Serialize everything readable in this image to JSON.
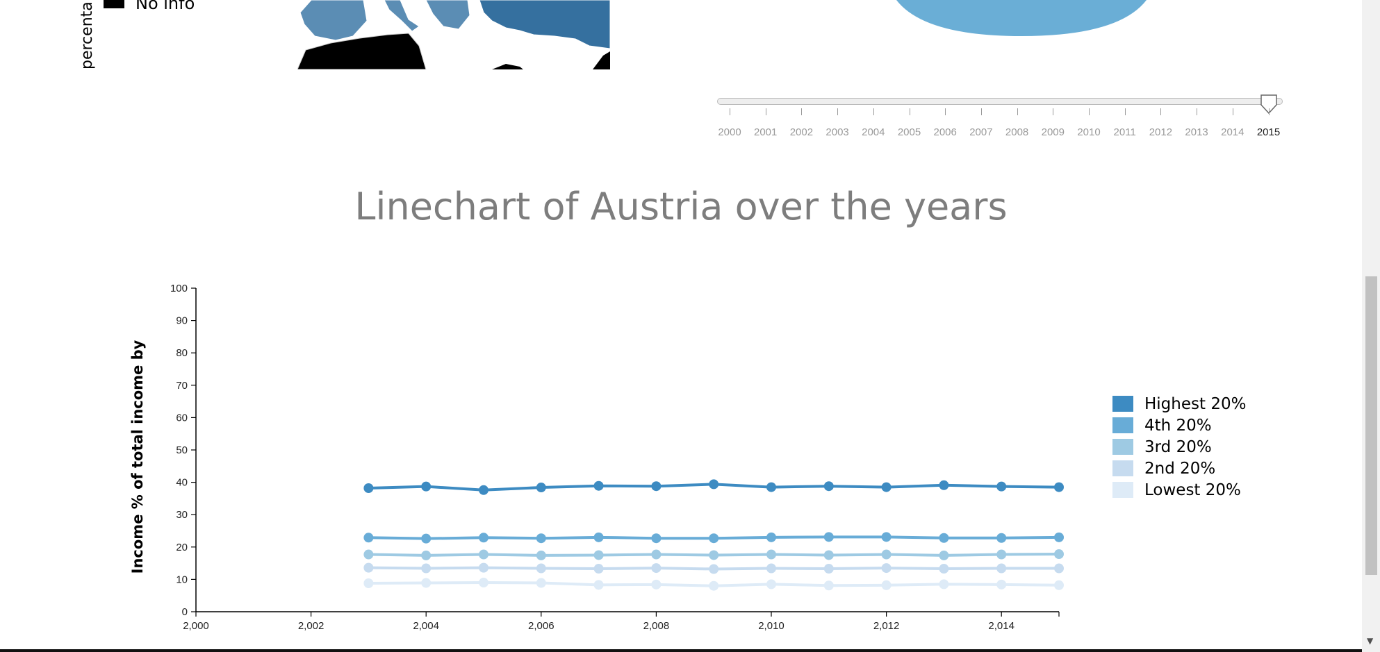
{
  "map_legend": {
    "no_info_label": "No info",
    "vertical_label_fragment": "percenta"
  },
  "slider": {
    "years": [
      "2000",
      "2001",
      "2002",
      "2003",
      "2004",
      "2005",
      "2006",
      "2007",
      "2008",
      "2009",
      "2010",
      "2011",
      "2012",
      "2013",
      "2014",
      "2015"
    ],
    "selected": "2015"
  },
  "chart_data": {
    "type": "line",
    "title": "Linechart of Austria over the years",
    "ylabel": "Income % of total income by",
    "xlabel": "",
    "xlim": [
      2000,
      2015
    ],
    "ylim": [
      0,
      100
    ],
    "x_ticks": [
      "2,000",
      "2,002",
      "2,004",
      "2,006",
      "2,008",
      "2,010",
      "2,012",
      "2,014"
    ],
    "y_ticks": [
      "0",
      "10",
      "20",
      "30",
      "40",
      "50",
      "60",
      "70",
      "80",
      "90",
      "100"
    ],
    "x": [
      2003,
      2004,
      2005,
      2006,
      2007,
      2008,
      2009,
      2010,
      2011,
      2012,
      2013,
      2014,
      2015
    ],
    "series": [
      {
        "name": "Highest 20%",
        "color": "#3d8bc2",
        "values": [
          38.2,
          38.7,
          37.6,
          38.4,
          38.9,
          38.8,
          39.4,
          38.5,
          38.8,
          38.5,
          39.1,
          38.7,
          38.5
        ]
      },
      {
        "name": "4th 20%",
        "color": "#68acd7",
        "values": [
          22.9,
          22.6,
          22.9,
          22.7,
          23.0,
          22.7,
          22.7,
          23.0,
          23.1,
          23.1,
          22.8,
          22.8,
          23.0
        ]
      },
      {
        "name": "3rd 20%",
        "color": "#9ecae3",
        "values": [
          17.7,
          17.4,
          17.7,
          17.4,
          17.5,
          17.7,
          17.5,
          17.7,
          17.5,
          17.7,
          17.4,
          17.7,
          17.8
        ]
      },
      {
        "name": "2nd 20%",
        "color": "#c6dbef",
        "values": [
          13.6,
          13.4,
          13.6,
          13.4,
          13.3,
          13.5,
          13.2,
          13.4,
          13.3,
          13.5,
          13.3,
          13.4,
          13.4
        ]
      },
      {
        "name": "Lowest 20%",
        "color": "#deebf7",
        "values": [
          8.8,
          8.9,
          9.0,
          8.9,
          8.3,
          8.4,
          8.0,
          8.5,
          8.1,
          8.2,
          8.5,
          8.4,
          8.2
        ]
      }
    ]
  }
}
